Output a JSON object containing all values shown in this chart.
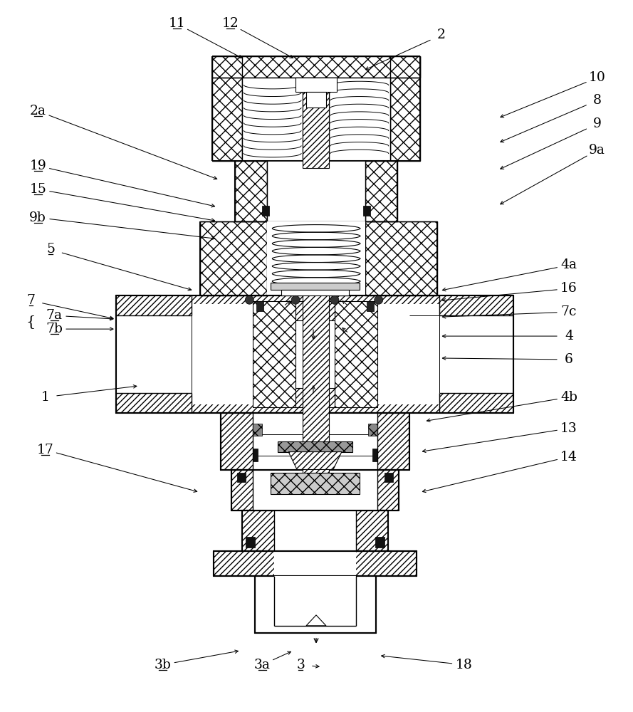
{
  "bg_color": "#ffffff",
  "fig_width": 8.89,
  "fig_height": 10.0,
  "label_data": [
    [
      "2",
      620,
      48,
      510,
      98,
      false
    ],
    [
      "2a",
      52,
      155,
      308,
      252,
      true
    ],
    [
      "10",
      840,
      108,
      700,
      165,
      false
    ],
    [
      "8",
      840,
      140,
      700,
      200,
      false
    ],
    [
      "9",
      840,
      173,
      700,
      238,
      false
    ],
    [
      "9a",
      840,
      210,
      700,
      288,
      false
    ],
    [
      "11",
      248,
      32,
      343,
      82,
      true
    ],
    [
      "12",
      323,
      32,
      415,
      82,
      true
    ],
    [
      "19",
      52,
      232,
      305,
      290,
      true
    ],
    [
      "15",
      52,
      265,
      305,
      310,
      true
    ],
    [
      "9b",
      52,
      305,
      305,
      335,
      true
    ],
    [
      "5",
      70,
      350,
      272,
      408,
      true
    ],
    [
      "4a",
      800,
      372,
      618,
      408,
      false
    ],
    [
      "16",
      800,
      405,
      618,
      422,
      false
    ],
    [
      "7c",
      800,
      438,
      618,
      445,
      false
    ],
    [
      "4",
      800,
      472,
      618,
      472,
      false
    ],
    [
      "6",
      800,
      505,
      618,
      503,
      false
    ],
    [
      "4b",
      800,
      558,
      596,
      592,
      false
    ],
    [
      "1",
      62,
      558,
      195,
      542,
      false
    ],
    [
      "13",
      800,
      602,
      590,
      635,
      false
    ],
    [
      "17",
      62,
      632,
      280,
      692,
      true
    ],
    [
      "14",
      800,
      642,
      590,
      692,
      false
    ],
    [
      "3b",
      228,
      935,
      338,
      915,
      true
    ],
    [
      "3a",
      368,
      935,
      412,
      915,
      true
    ],
    [
      "3",
      422,
      935,
      452,
      938,
      true
    ],
    [
      "18",
      652,
      935,
      532,
      922,
      false
    ],
    [
      "7",
      42,
      422,
      162,
      448,
      true
    ],
    [
      "7a",
      75,
      443,
      162,
      448,
      true
    ],
    [
      "7b",
      75,
      462,
      162,
      462,
      true
    ]
  ],
  "underlined_labels": [
    "2a",
    "11",
    "12",
    "19",
    "15",
    "9b",
    "5",
    "7",
    "7a",
    "7b",
    "1",
    "17",
    "3b",
    "3a",
    "3"
  ]
}
